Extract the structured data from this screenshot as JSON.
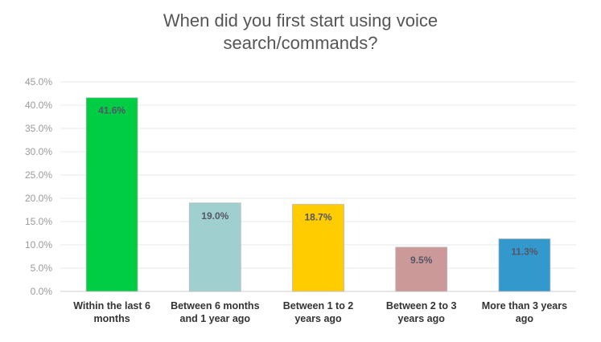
{
  "chart_data": {
    "type": "bar",
    "title_lines": [
      "When did you first start using voice",
      "search/commands?"
    ],
    "categories": [
      [
        "Within the last 6",
        "months"
      ],
      [
        "Between 6 months",
        "and 1 year ago"
      ],
      [
        "Between 1 to 2",
        "years ago"
      ],
      [
        "Between 2 to 3",
        "years ago"
      ],
      [
        "More than 3 years",
        "ago"
      ]
    ],
    "values": [
      41.6,
      19.0,
      18.7,
      9.5,
      11.3
    ],
    "data_labels": [
      "41.6%",
      "19.0%",
      "18.7%",
      "9.5%",
      "11.3%"
    ],
    "bar_colors": [
      "#00cc44",
      "#9fcfcf",
      "#ffcc00",
      "#cc9999",
      "#3399cc"
    ],
    "ylim": [
      0,
      45
    ],
    "yticks": [
      0,
      5,
      10,
      15,
      20,
      25,
      30,
      35,
      40,
      45
    ],
    "ytick_labels": [
      "0.0%",
      "5.0%",
      "10.0%",
      "15.0%",
      "20.0%",
      "25.0%",
      "30.0%",
      "35.0%",
      "40.0%",
      "45.0%"
    ],
    "grid": true,
    "xlabel": "",
    "ylabel": ""
  }
}
